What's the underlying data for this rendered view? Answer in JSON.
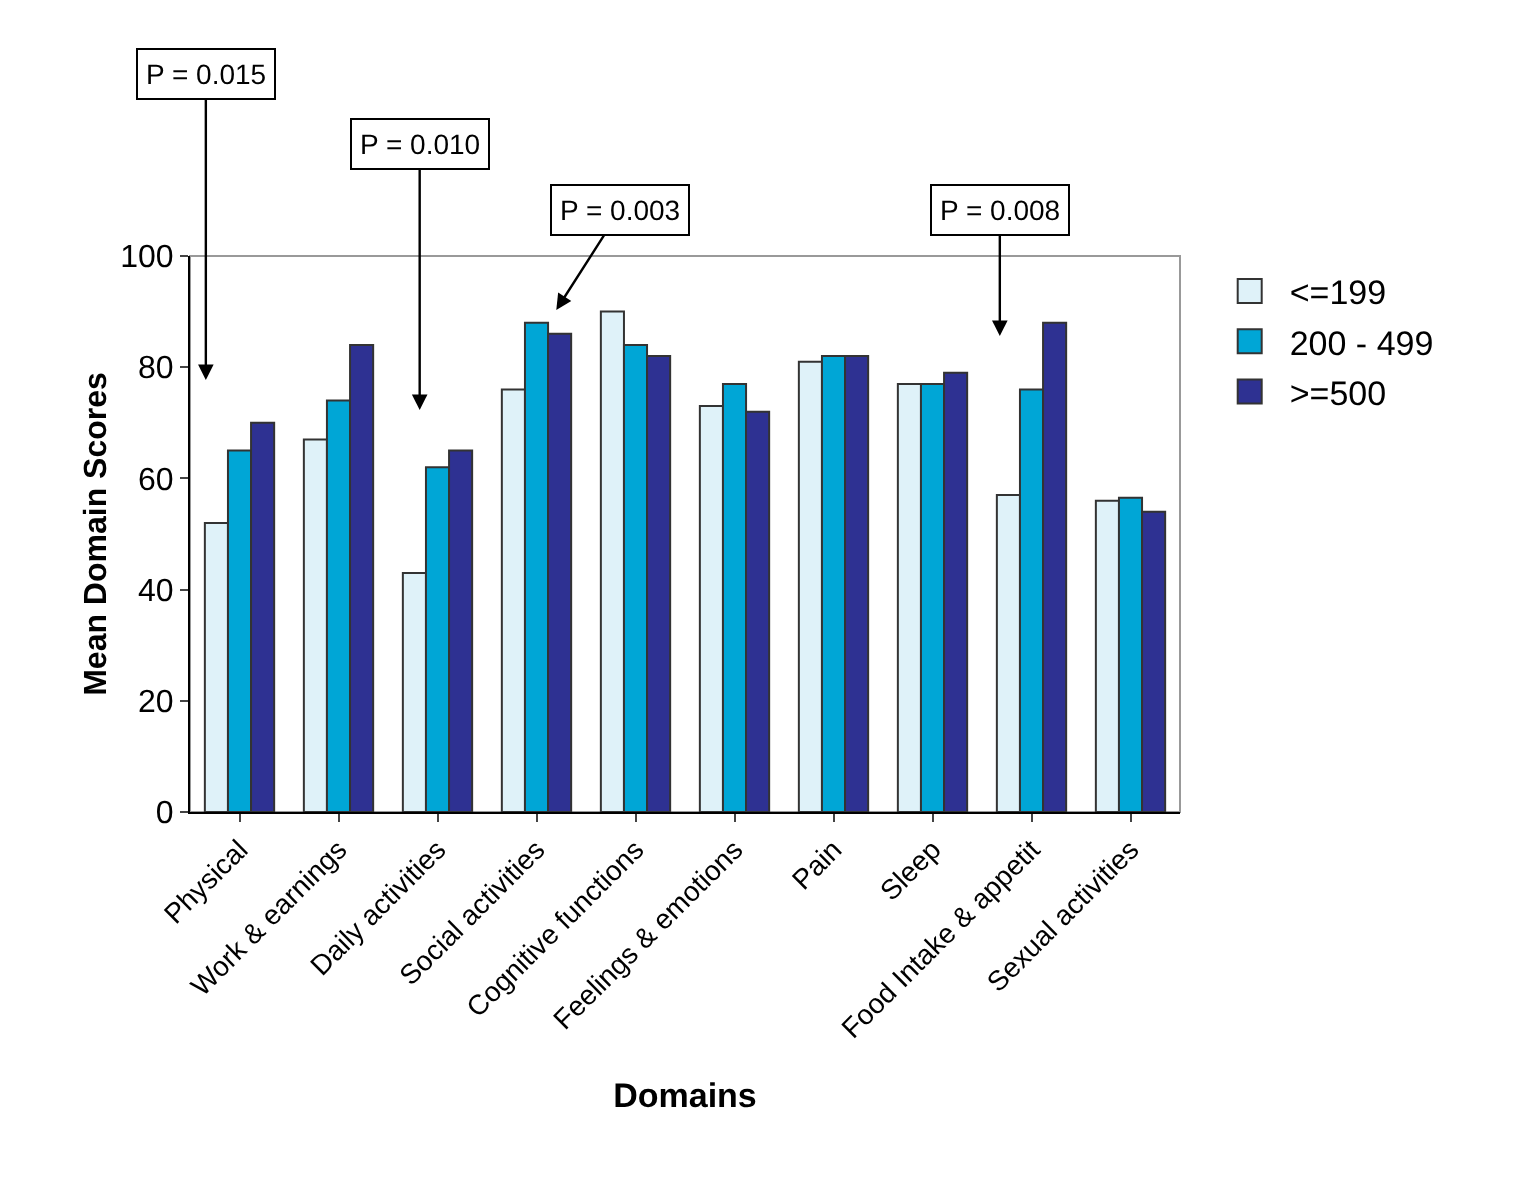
{
  "chart_data": {
    "type": "bar",
    "xlabel": "Domains",
    "ylabel": "Mean Domain Scores",
    "categories": [
      "Physical",
      "Work & earnings",
      "Daily activities",
      "Social activities",
      "Cognitive functions",
      "Feelings & emotions",
      "Pain",
      "Sleep",
      "Food Intake & appetit",
      "Sexual activities"
    ],
    "series": [
      {
        "name": "<=199",
        "color": "#dff2f9",
        "values": [
          52,
          67,
          43,
          76,
          90,
          73,
          81,
          77,
          57,
          56
        ]
      },
      {
        "name": "200 - 499",
        "color": "#00a6d6",
        "values": [
          65,
          74,
          62,
          88,
          84,
          77,
          82,
          77,
          76,
          56.5
        ]
      },
      {
        "name": ">=500",
        "color": "#2e3192",
        "values": [
          70,
          84,
          65,
          86,
          82,
          72,
          82,
          79,
          88,
          54
        ]
      }
    ],
    "ylim": [
      0,
      100
    ],
    "yticks": [
      0,
      20,
      40,
      60,
      80,
      100
    ],
    "grid": false,
    "legend": "top right",
    "annotations": [
      "P = 0.015",
      "P = 0.010",
      "P = 0.003",
      "P = 0.008"
    ]
  }
}
